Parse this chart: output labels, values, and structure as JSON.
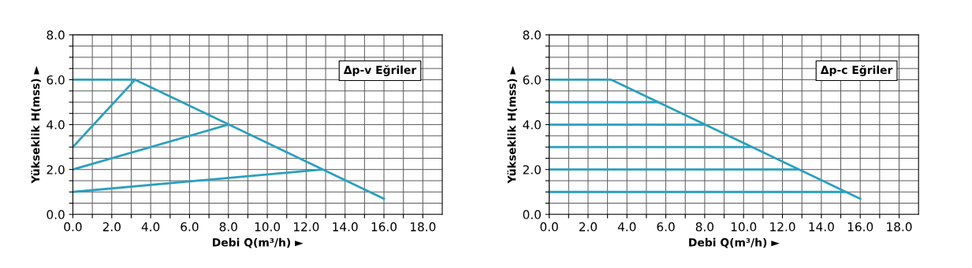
{
  "chart_data": [
    {
      "type": "line",
      "xlabel": "Debi Q(m³/h) ►",
      "ylabel": "Yükseklik H(mss) ►",
      "annotations": [
        "Δp-v Eğriler"
      ],
      "xlim": [
        0,
        19
      ],
      "ylim": [
        0,
        8
      ],
      "grid": true,
      "legend": false,
      "marker": "none",
      "line_style": "solid",
      "xticks": [
        {
          "value": 0,
          "label": "0.0"
        },
        {
          "value": 1,
          "label": null
        },
        {
          "value": 2,
          "label": "2.0"
        },
        {
          "value": 3,
          "label": null
        },
        {
          "value": 4,
          "label": "4.0"
        },
        {
          "value": 5,
          "label": null
        },
        {
          "value": 6,
          "label": "6.0"
        },
        {
          "value": 7,
          "label": null
        },
        {
          "value": 8,
          "label": "8.0"
        },
        {
          "value": 9,
          "label": null
        },
        {
          "value": 10,
          "label": "10.0"
        },
        {
          "value": 11,
          "label": null
        },
        {
          "value": 12,
          "label": "12.0"
        },
        {
          "value": 13,
          "label": null
        },
        {
          "value": 14,
          "label": "14.0"
        },
        {
          "value": 15,
          "label": null
        },
        {
          "value": 16,
          "label": "16.0"
        },
        {
          "value": 17,
          "label": null
        },
        {
          "value": 18,
          "label": "18.0"
        }
      ],
      "yticks": [
        {
          "value": 0,
          "label": "0.0"
        },
        {
          "value": 0.5,
          "label": null
        },
        {
          "value": 1,
          "label": null
        },
        {
          "value": 1.5,
          "label": null
        },
        {
          "value": 2,
          "label": "2.0"
        },
        {
          "value": 2.5,
          "label": null
        },
        {
          "value": 3,
          "label": null
        },
        {
          "value": 3.5,
          "label": null
        },
        {
          "value": 4,
          "label": "4.0"
        },
        {
          "value": 4.5,
          "label": null
        },
        {
          "value": 5,
          "label": null
        },
        {
          "value": 5.5,
          "label": null
        },
        {
          "value": 6,
          "label": "6.0"
        },
        {
          "value": 6.5,
          "label": null
        },
        {
          "value": 7,
          "label": null
        },
        {
          "value": 7.5,
          "label": null
        },
        {
          "value": 8,
          "label": "8.0"
        }
      ],
      "series": [
        {
          "color": "#2a9fc0",
          "x": [
            0,
            3.2,
            16
          ],
          "values": [
            6,
            6,
            0.7
          ]
        },
        {
          "color": "#2a9fc0",
          "x": [
            0,
            3.2
          ],
          "values": [
            3,
            6
          ]
        },
        {
          "color": "#2a9fc0",
          "x": [
            0,
            8
          ],
          "values": [
            2,
            4
          ]
        },
        {
          "color": "#2a9fc0",
          "x": [
            0,
            12.8
          ],
          "values": [
            1,
            2
          ]
        }
      ]
    },
    {
      "type": "line",
      "xlabel": "Debi Q(m³/h) ►",
      "ylabel": "Yükseklik H(mss) ►",
      "annotations": [
        "Δp-c Eğriler"
      ],
      "xlim": [
        0,
        19
      ],
      "ylim": [
        0,
        8
      ],
      "grid": true,
      "legend": false,
      "marker": "none",
      "line_style": "solid",
      "xticks": [
        {
          "value": 0,
          "label": "0.0"
        },
        {
          "value": 1,
          "label": null
        },
        {
          "value": 2,
          "label": "2.0"
        },
        {
          "value": 3,
          "label": null
        },
        {
          "value": 4,
          "label": "4.0"
        },
        {
          "value": 5,
          "label": null
        },
        {
          "value": 6,
          "label": "6.0"
        },
        {
          "value": 7,
          "label": null
        },
        {
          "value": 8,
          "label": "8.0"
        },
        {
          "value": 9,
          "label": null
        },
        {
          "value": 10,
          "label": "10.0"
        },
        {
          "value": 11,
          "label": null
        },
        {
          "value": 12,
          "label": "12.0"
        },
        {
          "value": 13,
          "label": null
        },
        {
          "value": 14,
          "label": "14.0"
        },
        {
          "value": 15,
          "label": null
        },
        {
          "value": 16,
          "label": "16.0"
        },
        {
          "value": 17,
          "label": null
        },
        {
          "value": 18,
          "label": "18.0"
        }
      ],
      "yticks": [
        {
          "value": 0,
          "label": "0.0"
        },
        {
          "value": 0.5,
          "label": null
        },
        {
          "value": 1,
          "label": null
        },
        {
          "value": 1.5,
          "label": null
        },
        {
          "value": 2,
          "label": "2.0"
        },
        {
          "value": 2.5,
          "label": null
        },
        {
          "value": 3,
          "label": null
        },
        {
          "value": 3.5,
          "label": null
        },
        {
          "value": 4,
          "label": "4.0"
        },
        {
          "value": 4.5,
          "label": null
        },
        {
          "value": 5,
          "label": null
        },
        {
          "value": 5.5,
          "label": null
        },
        {
          "value": 6,
          "label": "6.0"
        },
        {
          "value": 6.5,
          "label": null
        },
        {
          "value": 7,
          "label": null
        },
        {
          "value": 7.5,
          "label": null
        },
        {
          "value": 8,
          "label": "8.0"
        }
      ],
      "series": [
        {
          "color": "#2a9fc0",
          "x": [
            0,
            3.2,
            16
          ],
          "values": [
            6,
            6,
            0.7
          ]
        },
        {
          "color": "#2a9fc0",
          "x": [
            0,
            5.6
          ],
          "values": [
            5,
            5
          ]
        },
        {
          "color": "#2a9fc0",
          "x": [
            0,
            8
          ],
          "values": [
            4,
            4
          ]
        },
        {
          "color": "#2a9fc0",
          "x": [
            0,
            10.4
          ],
          "values": [
            3,
            3
          ]
        },
        {
          "color": "#2a9fc0",
          "x": [
            0,
            12.8
          ],
          "values": [
            2,
            2
          ]
        },
        {
          "color": "#2a9fc0",
          "x": [
            0,
            15.2
          ],
          "values": [
            1,
            1
          ]
        }
      ]
    }
  ]
}
